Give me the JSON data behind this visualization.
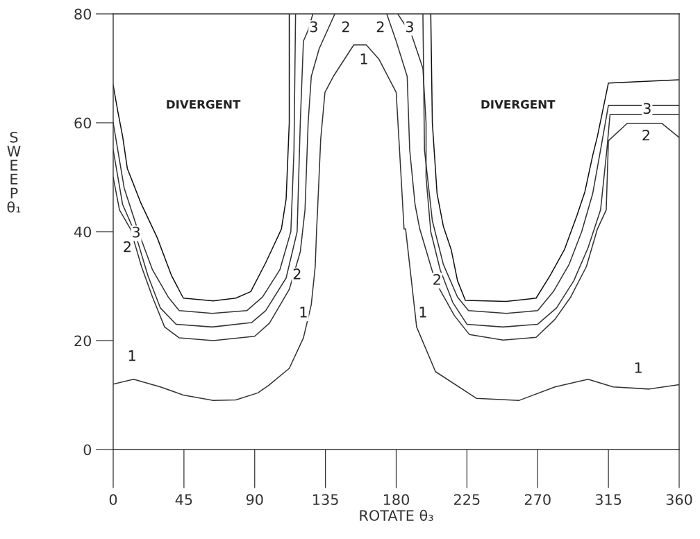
{
  "chart_data": {
    "type": "line",
    "xlabel": "ROTATE θ₃",
    "ylabel": "SWEEP θ₁",
    "xlim": [
      0,
      360
    ],
    "ylim": [
      0,
      80
    ],
    "xticks": [
      0,
      45,
      90,
      135,
      180,
      225,
      270,
      315,
      360
    ],
    "yticks": [
      0,
      20,
      40,
      60,
      80
    ],
    "grid": false,
    "legend": false,
    "line_style": "solid",
    "marker": "none",
    "series": [
      {
        "color": "#333333",
        "x": [
          0,
          13,
          30,
          44.6,
          63.6,
          78,
          92,
          99,
          112,
          121,
          126,
          128.5,
          129.4,
          130,
          132,
          134.7,
          140,
          153,
          161,
          169,
          180,
          183,
          185,
          186,
          193,
          205,
          231,
          258,
          281,
          302,
          318,
          341,
          360
        ],
        "values": [
          12,
          12.9,
          11.5,
          10,
          9,
          9.1,
          10.4,
          11.8,
          14.9,
          20.5,
          26.6,
          33.6,
          40.5,
          44,
          57,
          65.6,
          68.5,
          74.3,
          74.3,
          71.7,
          65.6,
          50.7,
          40.5,
          40.5,
          22.5,
          14.3,
          9.4,
          9,
          11.5,
          12.9,
          11.5,
          11.1,
          11.9
        ]
      },
      {
        "color": "#333333",
        "x": [
          0,
          4,
          11,
          18,
          25,
          32.7,
          42,
          63.6,
          90,
          99.4,
          112,
          119,
          122,
          124,
          126,
          131,
          141,
          null,
          174,
          180,
          187,
          188.6,
          192,
          195,
          205,
          217,
          226.6,
          248,
          269,
          281,
          291,
          301,
          308,
          313.6,
          315,
          327,
          349,
          360
        ],
        "values": [
          50,
          44,
          40.5,
          33.6,
          28,
          22.5,
          20.5,
          20,
          20.8,
          23.2,
          29.4,
          36.3,
          44,
          60,
          68.5,
          73.6,
          80,
          null,
          80,
          75,
          68.5,
          55,
          45,
          40.5,
          30.8,
          24.6,
          21.1,
          20.1,
          20.6,
          23.9,
          28,
          33.6,
          40.5,
          44,
          56.7,
          59.9,
          59.9,
          57.3
        ]
      },
      {
        "color": "#333333",
        "x": [
          0,
          6,
          14,
          22,
          30,
          40,
          63,
          88,
          97,
          110,
          117,
          119,
          121,
          124,
          127,
          null,
          181,
          190,
          197,
          199,
          199,
          202,
          208,
          216,
          225,
          248,
          270,
          282,
          293,
          302,
          310,
          314,
          316,
          330,
          360
        ],
        "values": [
          55,
          45,
          39.7,
          32,
          26,
          23,
          22.5,
          23.3,
          25.5,
          31.5,
          40,
          60,
          75,
          77,
          80,
          null,
          80,
          76,
          70,
          60,
          50,
          40,
          33,
          27,
          23,
          22.5,
          23,
          26,
          31,
          37,
          44,
          55,
          61.5,
          61.5,
          61.5
        ]
      },
      {
        "color": "#333333",
        "x": [
          0,
          7,
          16,
          25,
          35,
          42,
          63,
          85,
          95,
          106,
          113,
          115,
          116,
          null,
          197,
          198,
          203,
          210,
          219,
          226,
          250,
          270,
          280,
          290,
          298,
          305,
          310,
          315,
          360
        ],
        "values": [
          60,
          48,
          40,
          33,
          28,
          25.5,
          25,
          25.5,
          28,
          33,
          40,
          55,
          80,
          null,
          80,
          55,
          42,
          34,
          28,
          25.5,
          25,
          25.5,
          29,
          34,
          40,
          47,
          55,
          63.2,
          63.2
        ]
      },
      {
        "color": "#111111",
        "x": [
          0,
          3,
          6,
          9,
          17.7,
          28,
          37,
          44.6,
          63.6,
          78,
          87.5,
          97,
          103,
          107,
          110,
          112,
          112,
          null,
          202,
          203,
          206,
          210,
          215,
          219,
          224,
          250,
          269,
          278,
          287,
          295,
          300,
          305,
          308,
          315,
          360
        ],
        "values": [
          66.9,
          62,
          57.5,
          51.6,
          45.2,
          38.9,
          32,
          27.8,
          27.3,
          27.8,
          29,
          34.3,
          38,
          40.5,
          46,
          60,
          80,
          null,
          80,
          60,
          47,
          41,
          36.7,
          31,
          27.4,
          27.2,
          27.8,
          32,
          36.7,
          43,
          47.3,
          54,
          57.5,
          67.3,
          67.9
        ]
      }
    ],
    "annotations": [
      "DIVERGENT",
      "DIVERGENT",
      {
        "text": "1",
        "x": 12,
        "y": 17
      },
      {
        "text": "2",
        "x": 9,
        "y": 37
      },
      {
        "text": "3",
        "x": 14.6,
        "y": 39.7
      },
      {
        "text": "2",
        "x": 117,
        "y": 32
      },
      {
        "text": "1",
        "x": 121,
        "y": 25
      },
      {
        "text": "3",
        "x": 127.6,
        "y": 77.4
      },
      {
        "text": "2",
        "x": 148,
        "y": 77.4
      },
      {
        "text": "1",
        "x": 159.5,
        "y": 71.5
      },
      {
        "text": "2",
        "x": 170,
        "y": 77.4
      },
      {
        "text": "3",
        "x": 188.6,
        "y": 77.4
      },
      {
        "text": "1",
        "x": 197,
        "y": 25
      },
      {
        "text": "2",
        "x": 206,
        "y": 31
      },
      {
        "text": "3",
        "x": 339.6,
        "y": 62.4
      },
      {
        "text": "2",
        "x": 339,
        "y": 57.5
      },
      {
        "text": "1",
        "x": 334,
        "y": 14.8
      }
    ]
  }
}
